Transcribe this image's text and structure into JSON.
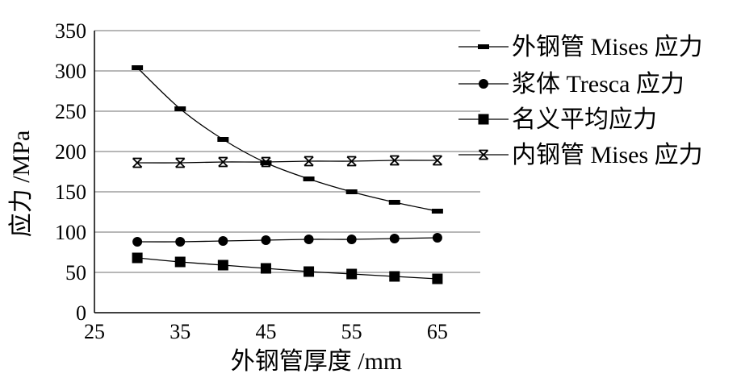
{
  "chart_data": {
    "type": "line",
    "xlabel": "外钢管厚度 /mm",
    "ylabel": "应力 /MPa",
    "xlim": [
      25,
      70
    ],
    "ylim": [
      0,
      350
    ],
    "grid": "horizontal",
    "legend_position": "right",
    "x_ticks": [
      "25",
      "35",
      "45",
      "55",
      "65"
    ],
    "y_ticks": [
      "0",
      "50",
      "100",
      "150",
      "200",
      "250",
      "300",
      "350"
    ],
    "x": [
      30,
      35,
      40,
      45,
      50,
      55,
      60,
      65
    ],
    "series": [
      {
        "name": "外钢管 Mises 应力",
        "marker": "dash",
        "values": [
          304,
          253,
          215,
          186,
          166,
          150,
          137,
          126
        ]
      },
      {
        "name": "浆体 Tresca 应力",
        "marker": "circle",
        "values": [
          88,
          88,
          89,
          90,
          91,
          91,
          92,
          93
        ]
      },
      {
        "name": "名义平均应力",
        "marker": "square",
        "values": [
          68,
          63,
          59,
          55,
          51,
          48,
          45,
          42
        ]
      },
      {
        "name": "内钢管 Mises 应力",
        "marker": "star",
        "values": [
          186,
          186,
          187,
          187,
          188,
          188,
          189,
          189
        ]
      }
    ]
  }
}
